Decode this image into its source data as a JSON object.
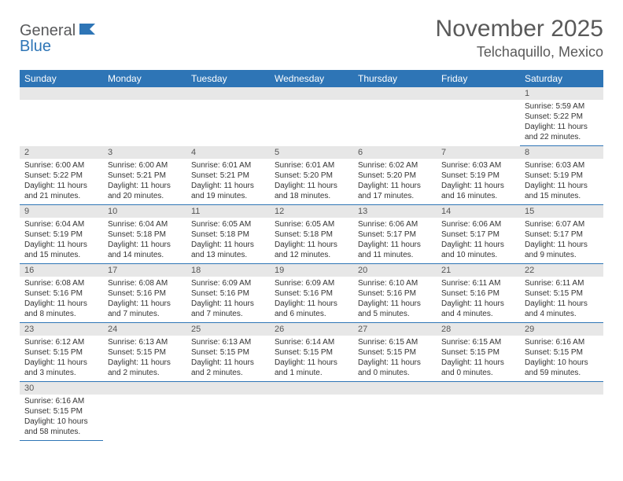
{
  "logo": {
    "text1": "General",
    "text2": "Blue"
  },
  "title": "November 2025",
  "location": "Telchaquillo, Mexico",
  "weekdays": [
    "Sunday",
    "Monday",
    "Tuesday",
    "Wednesday",
    "Thursday",
    "Friday",
    "Saturday"
  ],
  "colors": {
    "header_bg": "#2e75b6",
    "header_text": "#ffffff",
    "daynum_bg": "#e7e7e7",
    "cell_border": "#2e75b6",
    "title_color": "#595959",
    "text_color": "#333333"
  },
  "weeks": [
    [
      null,
      null,
      null,
      null,
      null,
      null,
      {
        "d": "1",
        "sr": "5:59 AM",
        "ss": "5:22 PM",
        "dl": "11 hours and 22 minutes."
      }
    ],
    [
      {
        "d": "2",
        "sr": "6:00 AM",
        "ss": "5:22 PM",
        "dl": "11 hours and 21 minutes."
      },
      {
        "d": "3",
        "sr": "6:00 AM",
        "ss": "5:21 PM",
        "dl": "11 hours and 20 minutes."
      },
      {
        "d": "4",
        "sr": "6:01 AM",
        "ss": "5:21 PM",
        "dl": "11 hours and 19 minutes."
      },
      {
        "d": "5",
        "sr": "6:01 AM",
        "ss": "5:20 PM",
        "dl": "11 hours and 18 minutes."
      },
      {
        "d": "6",
        "sr": "6:02 AM",
        "ss": "5:20 PM",
        "dl": "11 hours and 17 minutes."
      },
      {
        "d": "7",
        "sr": "6:03 AM",
        "ss": "5:19 PM",
        "dl": "11 hours and 16 minutes."
      },
      {
        "d": "8",
        "sr": "6:03 AM",
        "ss": "5:19 PM",
        "dl": "11 hours and 15 minutes."
      }
    ],
    [
      {
        "d": "9",
        "sr": "6:04 AM",
        "ss": "5:19 PM",
        "dl": "11 hours and 15 minutes."
      },
      {
        "d": "10",
        "sr": "6:04 AM",
        "ss": "5:18 PM",
        "dl": "11 hours and 14 minutes."
      },
      {
        "d": "11",
        "sr": "6:05 AM",
        "ss": "5:18 PM",
        "dl": "11 hours and 13 minutes."
      },
      {
        "d": "12",
        "sr": "6:05 AM",
        "ss": "5:18 PM",
        "dl": "11 hours and 12 minutes."
      },
      {
        "d": "13",
        "sr": "6:06 AM",
        "ss": "5:17 PM",
        "dl": "11 hours and 11 minutes."
      },
      {
        "d": "14",
        "sr": "6:06 AM",
        "ss": "5:17 PM",
        "dl": "11 hours and 10 minutes."
      },
      {
        "d": "15",
        "sr": "6:07 AM",
        "ss": "5:17 PM",
        "dl": "11 hours and 9 minutes."
      }
    ],
    [
      {
        "d": "16",
        "sr": "6:08 AM",
        "ss": "5:16 PM",
        "dl": "11 hours and 8 minutes."
      },
      {
        "d": "17",
        "sr": "6:08 AM",
        "ss": "5:16 PM",
        "dl": "11 hours and 7 minutes."
      },
      {
        "d": "18",
        "sr": "6:09 AM",
        "ss": "5:16 PM",
        "dl": "11 hours and 7 minutes."
      },
      {
        "d": "19",
        "sr": "6:09 AM",
        "ss": "5:16 PM",
        "dl": "11 hours and 6 minutes."
      },
      {
        "d": "20",
        "sr": "6:10 AM",
        "ss": "5:16 PM",
        "dl": "11 hours and 5 minutes."
      },
      {
        "d": "21",
        "sr": "6:11 AM",
        "ss": "5:16 PM",
        "dl": "11 hours and 4 minutes."
      },
      {
        "d": "22",
        "sr": "6:11 AM",
        "ss": "5:15 PM",
        "dl": "11 hours and 4 minutes."
      }
    ],
    [
      {
        "d": "23",
        "sr": "6:12 AM",
        "ss": "5:15 PM",
        "dl": "11 hours and 3 minutes."
      },
      {
        "d": "24",
        "sr": "6:13 AM",
        "ss": "5:15 PM",
        "dl": "11 hours and 2 minutes."
      },
      {
        "d": "25",
        "sr": "6:13 AM",
        "ss": "5:15 PM",
        "dl": "11 hours and 2 minutes."
      },
      {
        "d": "26",
        "sr": "6:14 AM",
        "ss": "5:15 PM",
        "dl": "11 hours and 1 minute."
      },
      {
        "d": "27",
        "sr": "6:15 AM",
        "ss": "5:15 PM",
        "dl": "11 hours and 0 minutes."
      },
      {
        "d": "28",
        "sr": "6:15 AM",
        "ss": "5:15 PM",
        "dl": "11 hours and 0 minutes."
      },
      {
        "d": "29",
        "sr": "6:16 AM",
        "ss": "5:15 PM",
        "dl": "10 hours and 59 minutes."
      }
    ],
    [
      {
        "d": "30",
        "sr": "6:16 AM",
        "ss": "5:15 PM",
        "dl": "10 hours and 58 minutes."
      },
      null,
      null,
      null,
      null,
      null,
      null
    ]
  ],
  "labels": {
    "sunrise": "Sunrise: ",
    "sunset": "Sunset: ",
    "daylight": "Daylight: "
  }
}
